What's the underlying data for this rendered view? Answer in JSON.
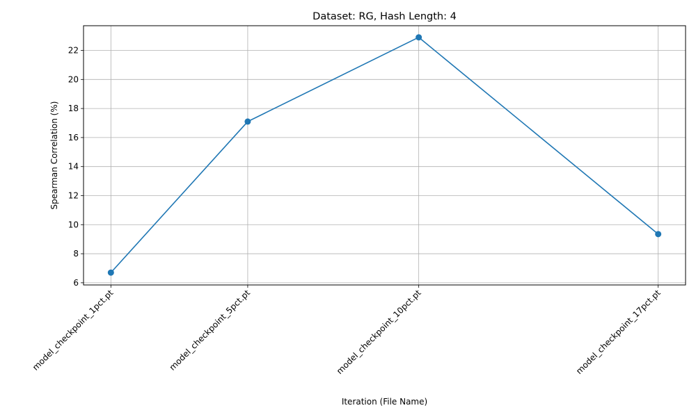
{
  "chart_data": {
    "type": "line",
    "title": "Dataset: RG, Hash Length: 4",
    "xlabel": "Iteration (File Name)",
    "ylabel": "Spearman Correlation (%)",
    "categories": [
      "model_checkpoint_1pct.pt",
      "model_checkpoint_5pct.pt",
      "model_checkpoint_10pct.pt",
      "model_checkpoint_17pct.pt"
    ],
    "x": [
      1,
      5,
      10,
      17
    ],
    "xlim": [
      0.2,
      17.8
    ],
    "series": [
      {
        "values": [
          6.7,
          17.1,
          22.9,
          9.35
        ],
        "color": "#1f77b4"
      }
    ],
    "ylim": [
      5.85,
      23.7
    ],
    "yticks": [
      6,
      8,
      10,
      12,
      14,
      16,
      18,
      20,
      22
    ],
    "grid": true,
    "marker": "circle"
  }
}
